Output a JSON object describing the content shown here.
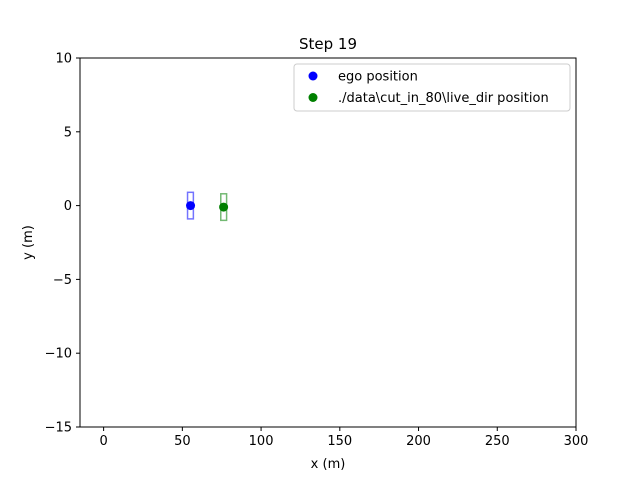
{
  "chart_data": {
    "type": "scatter",
    "title": "Step 19",
    "xlabel": "x (m)",
    "ylabel": "y (m)",
    "xlim": [
      -15,
      300
    ],
    "ylim": [
      -15,
      10
    ],
    "xticks": [
      0,
      50,
      100,
      150,
      200,
      250,
      300
    ],
    "yticks": [
      10,
      5,
      0,
      -5,
      -10,
      -15
    ],
    "xtick_labels": [
      "0",
      "50",
      "100",
      "150",
      "200",
      "250",
      "300"
    ],
    "ytick_labels": [
      "10",
      "5",
      "0",
      "−5",
      "−10",
      "−15"
    ],
    "grid": false,
    "legend_position": "upper right",
    "series": [
      {
        "name": "ego position",
        "color": "#0000ff",
        "x": [
          55.2
        ],
        "y": [
          0.0
        ],
        "box": {
          "x_min": 53.3,
          "x_max": 57.0,
          "y_min": -0.9,
          "y_max": 0.9
        }
      },
      {
        "name": "./data\\cut_in_80\\live_dir position",
        "color": "#008000",
        "x": [
          76.2
        ],
        "y": [
          -0.1
        ],
        "box": {
          "x_min": 74.4,
          "x_max": 78.1,
          "y_min": -1.0,
          "y_max": 0.8
        }
      }
    ]
  }
}
